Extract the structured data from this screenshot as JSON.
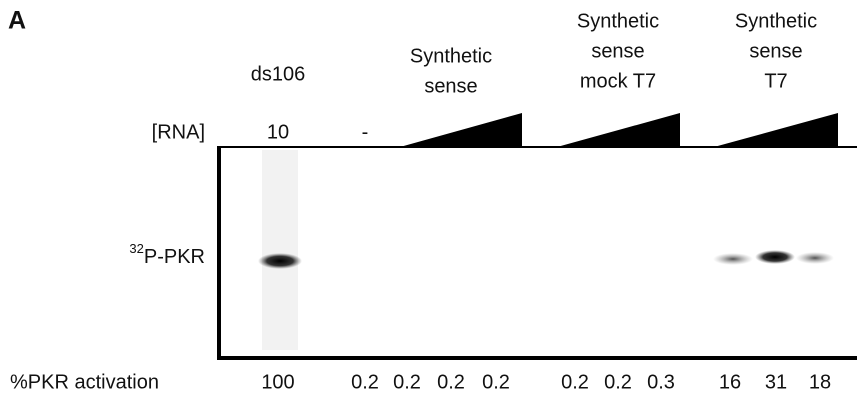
{
  "panel_label": "A",
  "row_labels": {
    "rna": "[RNA]",
    "band": {
      "superscript": "32",
      "text": "P-PKR"
    },
    "activation": "%PKR activation"
  },
  "groups": [
    {
      "label": [
        "ds106"
      ],
      "rna": "10",
      "activation": [
        100
      ]
    },
    {
      "label": [],
      "rna": "-",
      "activation": [
        0.2
      ]
    },
    {
      "label": [
        "Synthetic",
        "sense"
      ],
      "activation": [
        0.2,
        0.2,
        0.2
      ]
    },
    {
      "label": [
        "Synthetic",
        "sense",
        "mock T7"
      ],
      "activation": [
        0.2,
        0.2,
        0.3
      ]
    },
    {
      "label": [
        "Synthetic",
        "sense",
        "T7"
      ],
      "activation": [
        16,
        31,
        18
      ]
    }
  ]
}
